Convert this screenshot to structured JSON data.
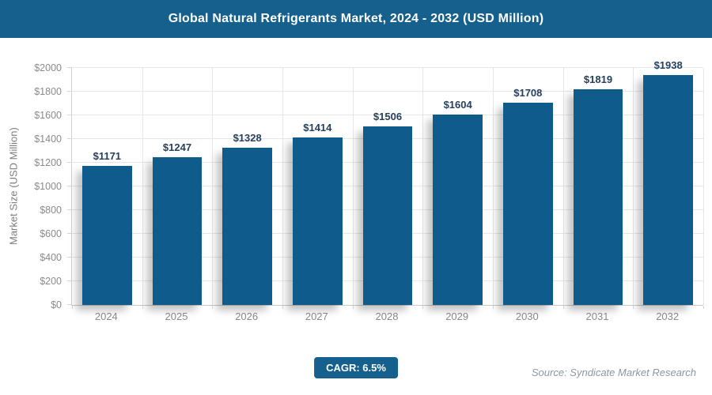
{
  "header": {
    "title": "Global Natural Refrigerants Market, 2024 - 2032 (USD Million)"
  },
  "chart_data": {
    "type": "bar",
    "title": "Global Natural Refrigerants Market, 2024 - 2032 (USD Million)",
    "categories": [
      "2024",
      "2025",
      "2026",
      "2027",
      "2028",
      "2029",
      "2030",
      "2031",
      "2032"
    ],
    "values": [
      1171,
      1247,
      1328,
      1414,
      1506,
      1604,
      1708,
      1819,
      1938
    ],
    "value_labels": [
      "$1171",
      "$1247",
      "$1328",
      "$1414",
      "$1506",
      "$1604",
      "$1708",
      "$1819",
      "$1938"
    ],
    "xlabel": "",
    "ylabel": "Market Size (USD Million)",
    "ylim": [
      0,
      2000
    ],
    "ytick_step": 200,
    "ytick_labels": [
      "$0",
      "$200",
      "$400",
      "$600",
      "$800",
      "$1000",
      "$1200",
      "$1400",
      "$1600",
      "$1800",
      "$2000"
    ],
    "grid": true,
    "legend": "none",
    "bar_color": "#0F5C8C",
    "value_label_color": "#27405C"
  },
  "footer": {
    "cagr": "CAGR: 6.5%",
    "source": "Source: Syndicate Market Research"
  },
  "colors": {
    "header_bg": "#15608D",
    "badge_bg": "#15608D",
    "bar": "#0F5C8C",
    "gridline": "#E6E6E6",
    "axis_line": "#C9C9C9",
    "tick_text": "#8A8A8A",
    "source_text": "#8C979E"
  }
}
